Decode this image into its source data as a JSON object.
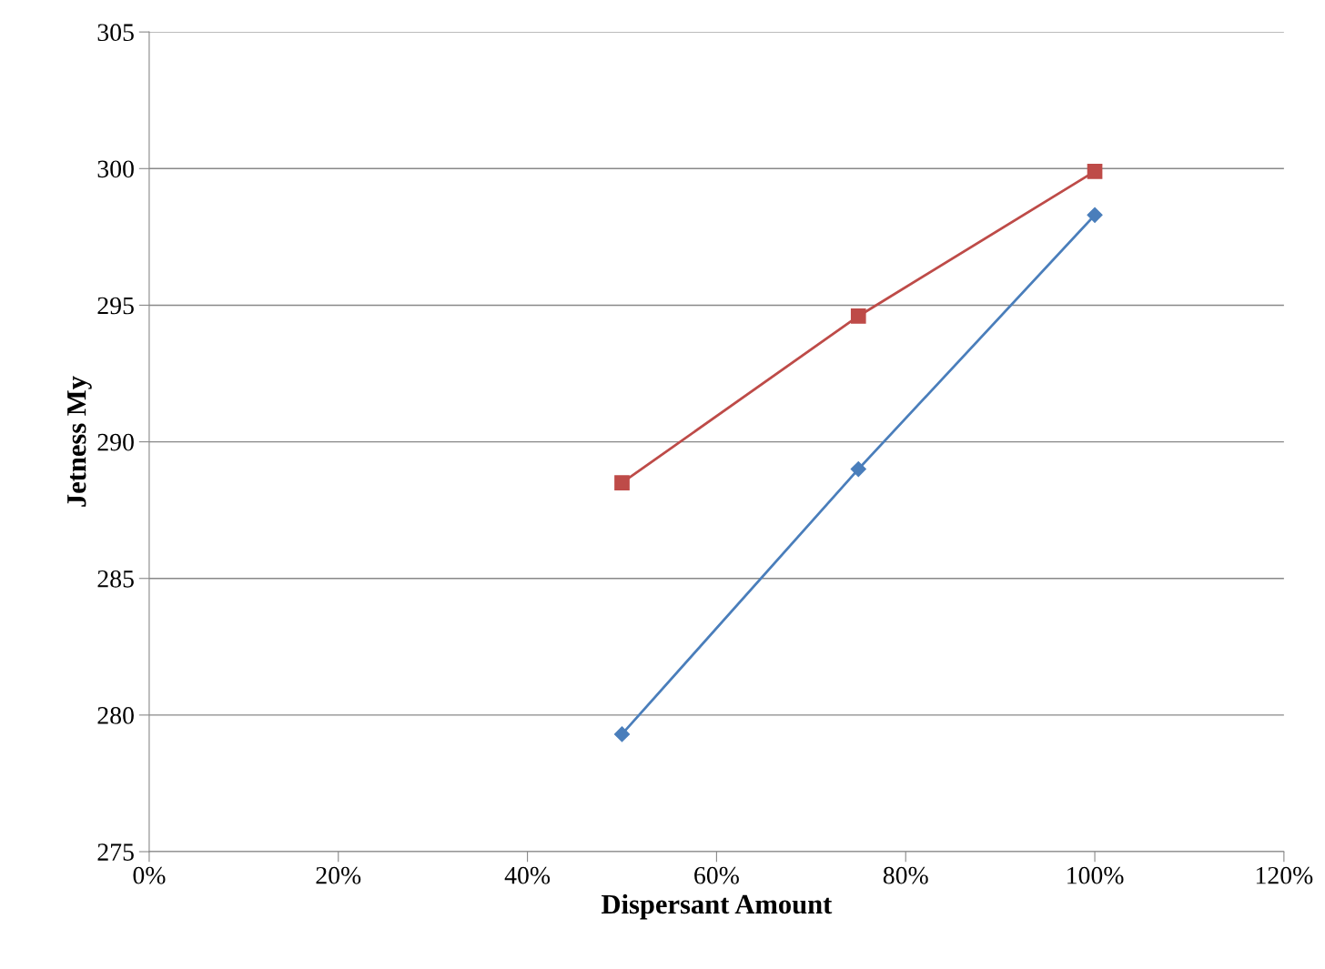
{
  "chart_data": {
    "type": "line",
    "xlabel": "Dispersant Amount",
    "ylabel": "Jetness My",
    "x": [
      50,
      75,
      100
    ],
    "series": [
      {
        "color": "#4a7ebb",
        "marker": "diamond",
        "values": [
          279.3,
          289.0,
          298.3
        ]
      },
      {
        "color": "#be4b48",
        "marker": "square",
        "values": [
          288.5,
          294.6,
          299.9
        ]
      }
    ],
    "xlim": [
      0,
      120
    ],
    "xticks": [
      {
        "value": 0,
        "label": "0%"
      },
      {
        "value": 20,
        "label": "20%"
      },
      {
        "value": 40,
        "label": "40%"
      },
      {
        "value": 60,
        "label": "60%"
      },
      {
        "value": 80,
        "label": "80%"
      },
      {
        "value": 100,
        "label": "100%"
      },
      {
        "value": 120,
        "label": "120%"
      }
    ],
    "ylim": [
      275,
      305
    ],
    "yticks": [
      275,
      280,
      285,
      290,
      295,
      300,
      305
    ],
    "grid": "y",
    "line_style": "solid"
  }
}
